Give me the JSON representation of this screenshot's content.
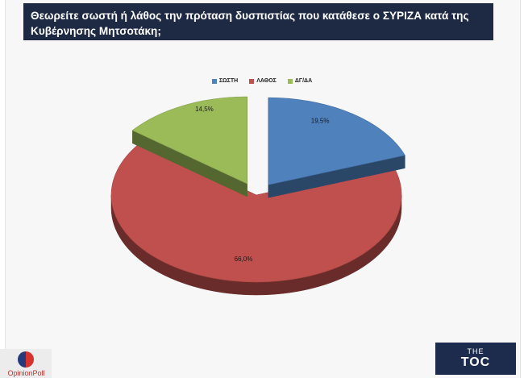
{
  "header": {
    "title": "Θεωρείτε σωστή ή λάθος την πρόταση δυσπιστίας που κατάθεσε ο ΣΥΡΙΖΑ κατά της Κυβέρνησης Μητσοτάκη;"
  },
  "chart_data": {
    "type": "pie",
    "title": "Θεωρείτε σωστή ή λάθος την πρόταση δυσπιστίας που κατάθεσε ο ΣΥΡΙΖΑ κατά της Κυβέρνησης Μητσοτάκη;",
    "categories": [
      "ΣΩΣΤΗ",
      "ΛΑΘΟΣ",
      "ΔΓ/ΔΑ"
    ],
    "values": [
      19.5,
      66.0,
      14.5
    ],
    "value_labels": [
      "19,5%",
      "66,0%",
      "14,5%"
    ],
    "colors": [
      "#4f81bd",
      "#c0504d",
      "#9bbb59"
    ],
    "legend_position": "top",
    "exploded": true,
    "style": "3d"
  },
  "logos": {
    "left": "OpinionPoll",
    "right_small": "THE",
    "right_big": "TOC"
  }
}
